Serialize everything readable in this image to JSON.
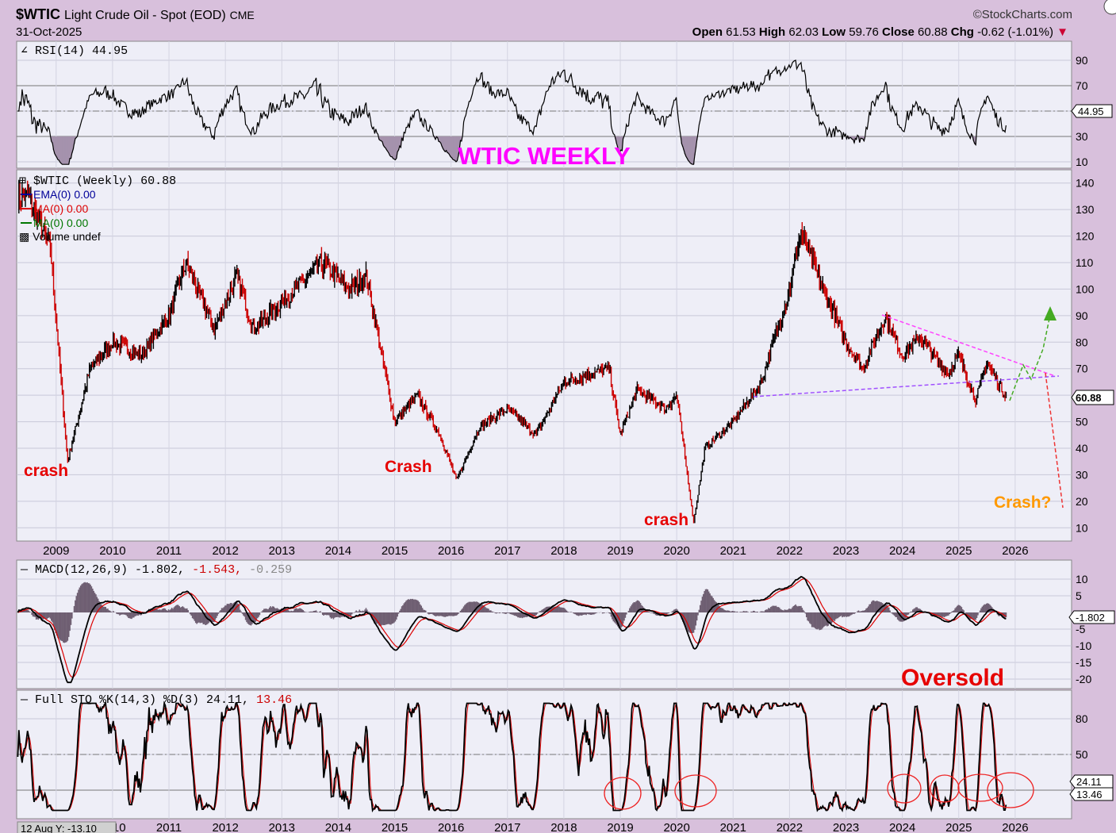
{
  "header": {
    "symbol": "$WTIC",
    "name": "Light Crude Oil - Spot (EOD)",
    "exchange": "CME",
    "date": "31-Oct-2025",
    "brand": "©StockCharts.com",
    "open_label": "Open",
    "open": "61.53",
    "high_label": "High",
    "high": "62.03",
    "low_label": "Low",
    "low": "59.76",
    "close_label": "Close",
    "close": "60.88",
    "chg_label": "Chg",
    "chg": "-0.62 (-1.01%)"
  },
  "rsi_panel": {
    "legend": "RSI(14) 44.95",
    "ticks": [
      "90",
      "70",
      "50",
      "30",
      "10"
    ],
    "tick_values": [
      90,
      70,
      50,
      30,
      10
    ],
    "last": "44.95",
    "annotation": "WTIC WEEKLY"
  },
  "price_panel": {
    "legend": "$WTIC (Weekly) 60.88",
    "ema_legend": "EMA(0) 0.00",
    "ma1_legend": "MA(0) 0.00",
    "ma2_legend": "MA(0) 0.00",
    "volume_legend": "Volume undef",
    "ticks": [
      "140",
      "130",
      "120",
      "110",
      "100",
      "90",
      "80",
      "70",
      "60",
      "50",
      "40",
      "30",
      "20",
      "10"
    ],
    "tick_values": [
      140,
      130,
      120,
      110,
      100,
      90,
      80,
      70,
      60,
      50,
      40,
      30,
      20,
      10
    ],
    "last": "60.88",
    "annotations": {
      "crash1": "crash",
      "crash2": "Crash",
      "crash3": "crash",
      "crash4": "Crash?"
    }
  },
  "years": [
    "2009",
    "2010",
    "2011",
    "2012",
    "2013",
    "2014",
    "2015",
    "2016",
    "2017",
    "2018",
    "2019",
    "2020",
    "2021",
    "2022",
    "2023",
    "2024",
    "2025",
    "2026"
  ],
  "macd_panel": {
    "legend_main": "MACD(12,26,9) -1.802,",
    "legend_signal": "-1.543,",
    "legend_hist": "-0.259",
    "ticks": [
      "10",
      "5",
      "-5",
      "-10",
      "-15",
      "-20"
    ],
    "tick_values": [
      10,
      5,
      -5,
      -10,
      -15,
      -20
    ],
    "last": "-1.802",
    "annotation": "Oversold"
  },
  "sto_panel": {
    "legend_main": "Full STO %K(14,3) %D(3) 24.11,",
    "legend_d": "13.46",
    "ticks": [
      "80",
      "50"
    ],
    "tick_values": [
      80,
      50
    ],
    "last_k": "24.11",
    "last_d": "13.46",
    "cursor": "12 Aug Y: -13.10"
  },
  "colors": {
    "background": "#d8c0dc",
    "plot": "#eeeef7",
    "up": "#000000",
    "down": "#cc0000",
    "rsi_fill": "#a592ad",
    "annotation_red": "#e60000",
    "annotation_pink": "#ff00ff",
    "annotation_orange": "#ff9900"
  },
  "chart_data": {
    "type": "line",
    "title": "$WTIC Light Crude Oil - Spot (EOD) Weekly",
    "x": [
      2008.5,
      2008.9,
      2009.2,
      2009.6,
      2010.0,
      2010.5,
      2011.0,
      2011.3,
      2011.8,
      2012.2,
      2012.5,
      2013.0,
      2013.7,
      2014.2,
      2014.5,
      2015.0,
      2015.4,
      2015.8,
      2016.1,
      2016.5,
      2017.0,
      2017.5,
      2018.0,
      2018.8,
      2019.0,
      2019.3,
      2019.8,
      2020.0,
      2020.3,
      2020.5,
      2021.0,
      2021.5,
      2022.0,
      2022.2,
      2022.5,
      2023.0,
      2023.3,
      2023.7,
      2024.0,
      2024.3,
      2024.8,
      2025.0,
      2025.3,
      2025.5,
      2025.8
    ],
    "series": [
      {
        "name": "$WTIC",
        "values": [
          135,
          115,
          35,
          70,
          80,
          75,
          90,
          110,
          85,
          105,
          85,
          95,
          110,
          100,
          105,
          50,
          60,
          45,
          28,
          48,
          55,
          45,
          65,
          70,
          45,
          62,
          55,
          60,
          12,
          40,
          50,
          65,
          100,
          122,
          105,
          80,
          70,
          90,
          75,
          82,
          68,
          75,
          58,
          72,
          60.88
        ]
      }
    ],
    "xlabel": "",
    "ylabel": "",
    "ylim": [
      5,
      145
    ],
    "grid": true
  }
}
